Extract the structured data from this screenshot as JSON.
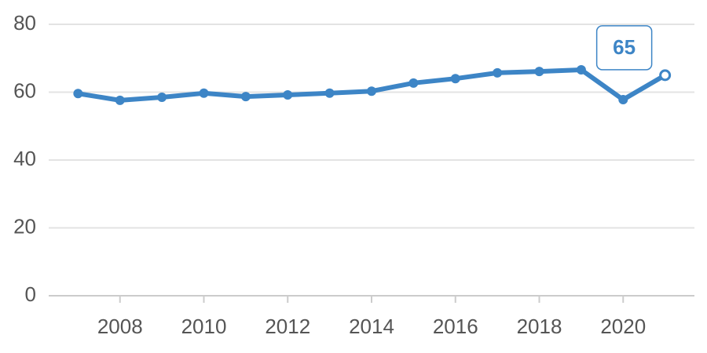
{
  "chart_data": {
    "type": "line",
    "x": [
      2007,
      2008,
      2009,
      2010,
      2011,
      2012,
      2013,
      2014,
      2015,
      2016,
      2017,
      2018,
      2019,
      2020,
      2021
    ],
    "values": [
      59.6,
      57.6,
      58.5,
      59.7,
      58.7,
      59.2,
      59.7,
      60.3,
      62.7,
      64.0,
      65.7,
      66.1,
      66.6,
      57.8,
      65
    ],
    "color": "#3d85c6",
    "xlim": [
      2006.3,
      2021.7
    ],
    "xticks": [
      2008,
      2010,
      2012,
      2014,
      2016,
      2018,
      2020
    ],
    "ylim": [
      0,
      80
    ],
    "yticks": [
      0,
      20,
      40,
      60,
      80
    ],
    "grid": true
  }
}
